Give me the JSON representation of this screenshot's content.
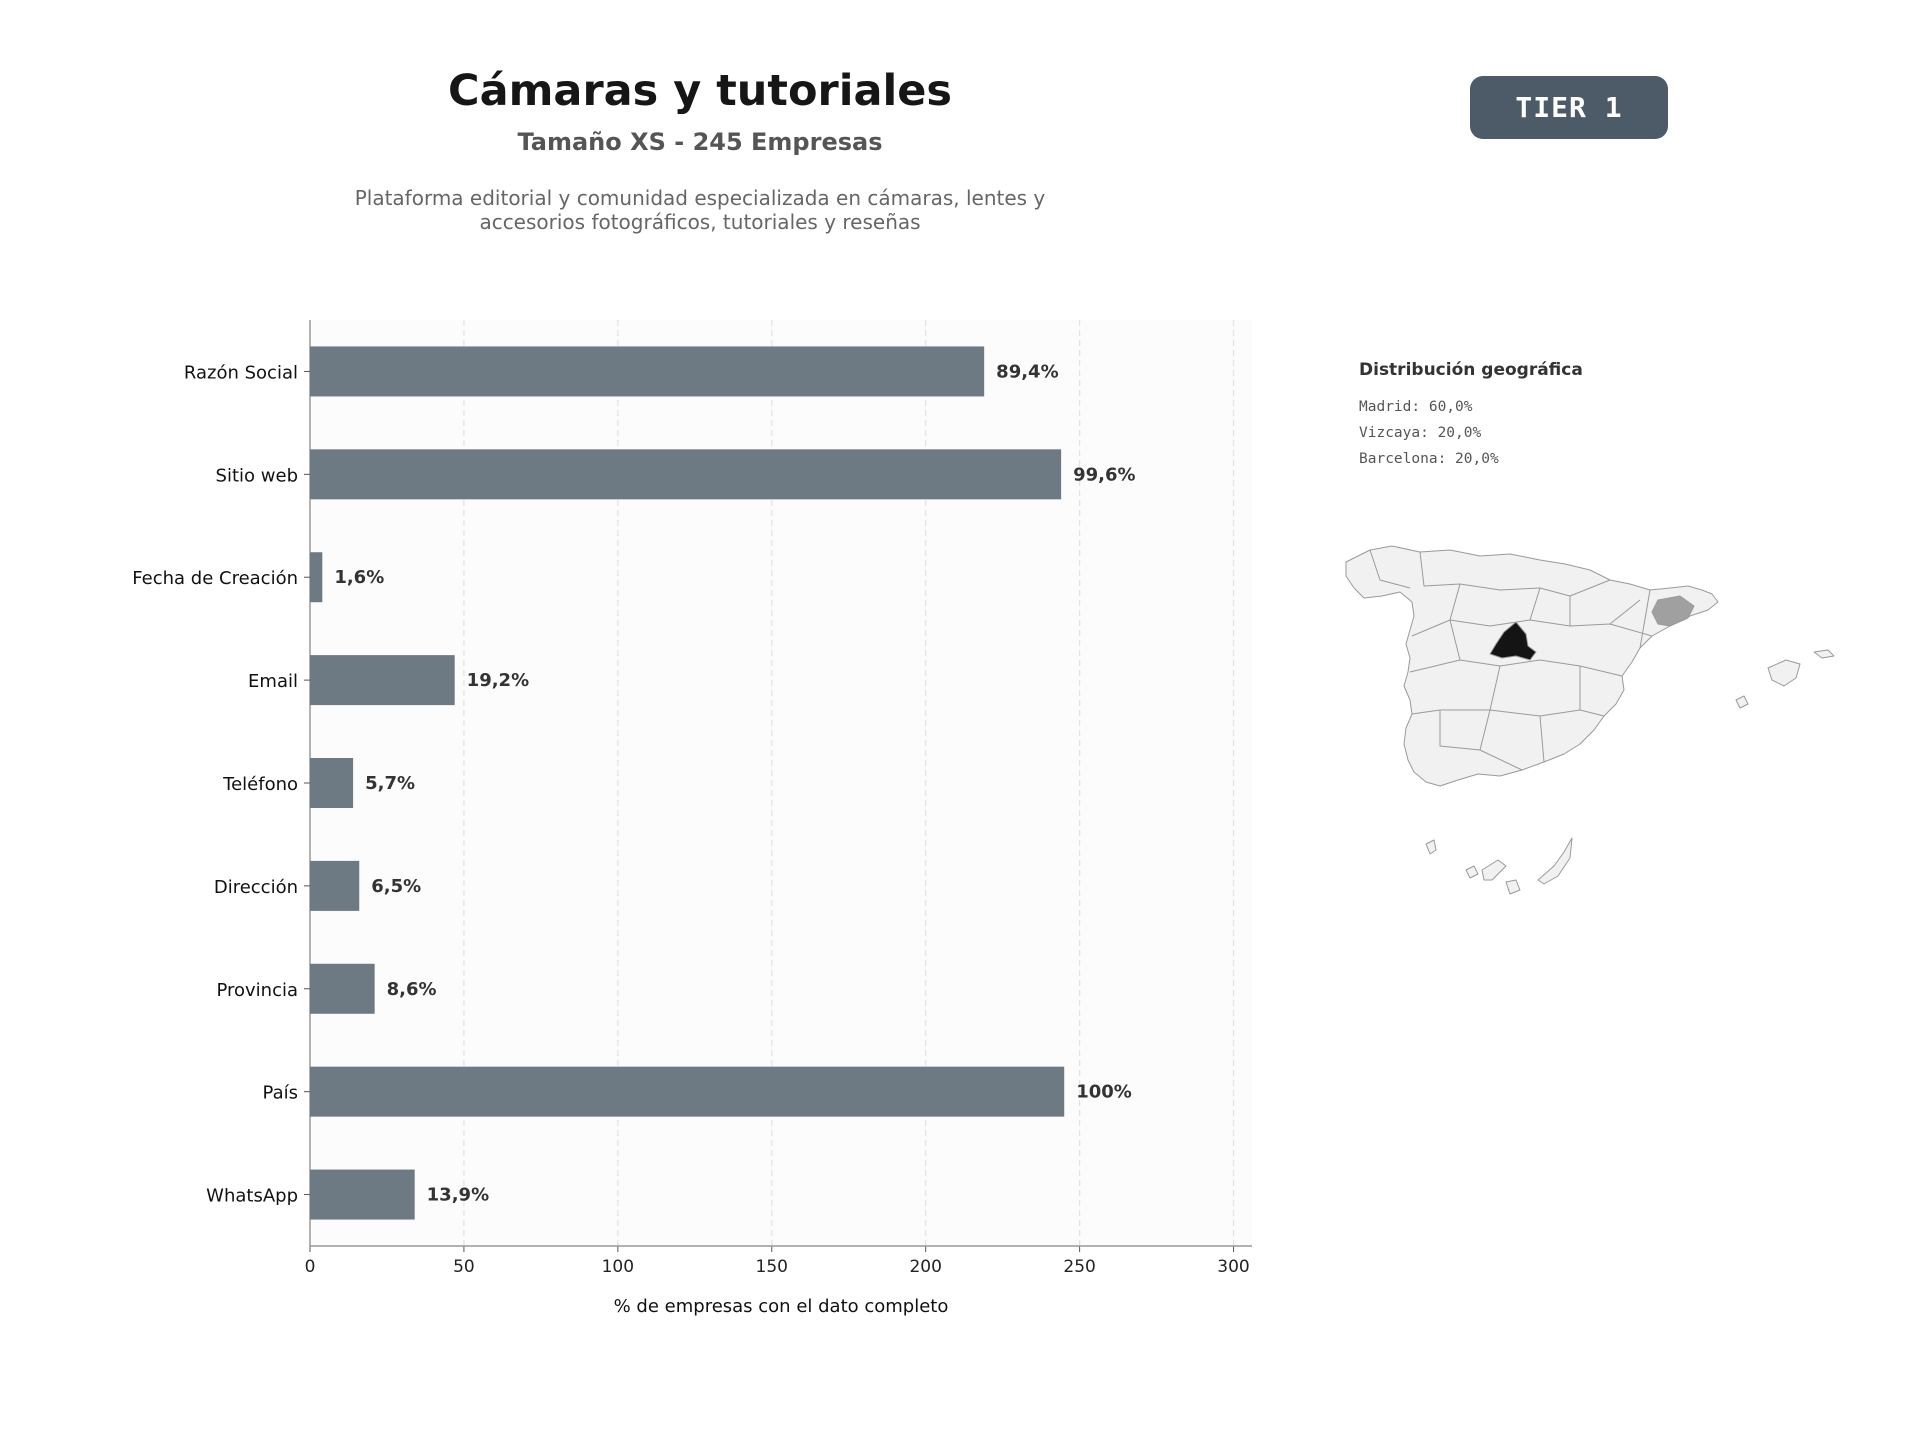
{
  "header": {
    "title": "Cámaras y tutoriales",
    "subtitle": "Tamaño XS - 245 Empresas",
    "description_line1": "Plataforma editorial y comunidad especializada en cámaras, lentes y",
    "description_line2": "accesorios fotográficos, tutoriales y reseñas"
  },
  "badge": {
    "label": "TIER 1",
    "color": "#4d5b69"
  },
  "geo": {
    "title": "Distribución geográfica",
    "entries": [
      "Madrid: 60,0%",
      "Vizcaya: 20,0%",
      "Barcelona: 20,0%"
    ],
    "colors": {
      "base": "#f1f1f1",
      "madrid": "#141414",
      "barcelona": "#a0a0a0",
      "border": "#9a9a9a"
    }
  },
  "chart_data": {
    "type": "bar",
    "orientation": "horizontal",
    "categories": [
      "Razón Social",
      "Sitio web",
      "Fecha de Creación",
      "Email",
      "Teléfono",
      "Dirección",
      "Provincia",
      "País",
      "WhatsApp"
    ],
    "values": [
      219,
      244,
      4,
      47,
      14,
      16,
      21,
      245,
      34
    ],
    "data_labels": [
      "89,4%",
      "99,6%",
      "1,6%",
      "19,2%",
      "5,7%",
      "6,5%",
      "8,6%",
      "100%",
      "13,9%"
    ],
    "xlabel": "% de empresas con el dato completo",
    "ylabel": "",
    "xlim": [
      0,
      306
    ],
    "xticks": [
      0,
      50,
      100,
      150,
      200,
      250,
      300
    ],
    "grid": "vertical dashed",
    "bar_color": "#6e7a83",
    "plot_background": "#fcfcfc"
  }
}
